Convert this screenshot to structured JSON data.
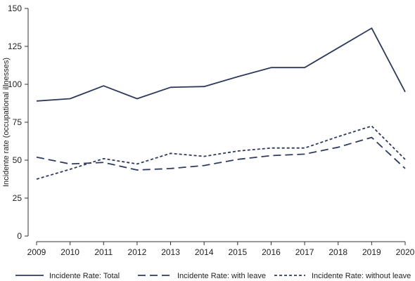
{
  "chart_data": {
    "type": "line",
    "x": [
      2009,
      2010,
      2011,
      2012,
      2013,
      2014,
      2015,
      2016,
      2017,
      2018,
      2019,
      2020
    ],
    "ylabel": "Incidente rate (occupational illnesses)",
    "ylim": [
      0,
      150
    ],
    "yticks": [
      0,
      25,
      50,
      75,
      100,
      125,
      150
    ],
    "grid": "off",
    "legend_position": "bottom",
    "series": [
      {
        "name": "Incidente Rate: Total",
        "style": "solid",
        "values": [
          89,
          90.5,
          99,
          90.5,
          98,
          98.5,
          105,
          111,
          111,
          124,
          137,
          95
        ]
      },
      {
        "name": "Incidente Rate: with leave",
        "style": "long-dash",
        "values": [
          52,
          47.5,
          48.5,
          43.5,
          44.5,
          46.5,
          50.5,
          53,
          54,
          58.5,
          65,
          44.5
        ]
      },
      {
        "name": "Incidente Rate: without leave",
        "style": "short-dash",
        "values": [
          37.5,
          44,
          51,
          47.5,
          54.5,
          52.5,
          56,
          58,
          58,
          65.5,
          72.5,
          50.5
        ]
      }
    ],
    "line_color": "#2e3a5c"
  }
}
